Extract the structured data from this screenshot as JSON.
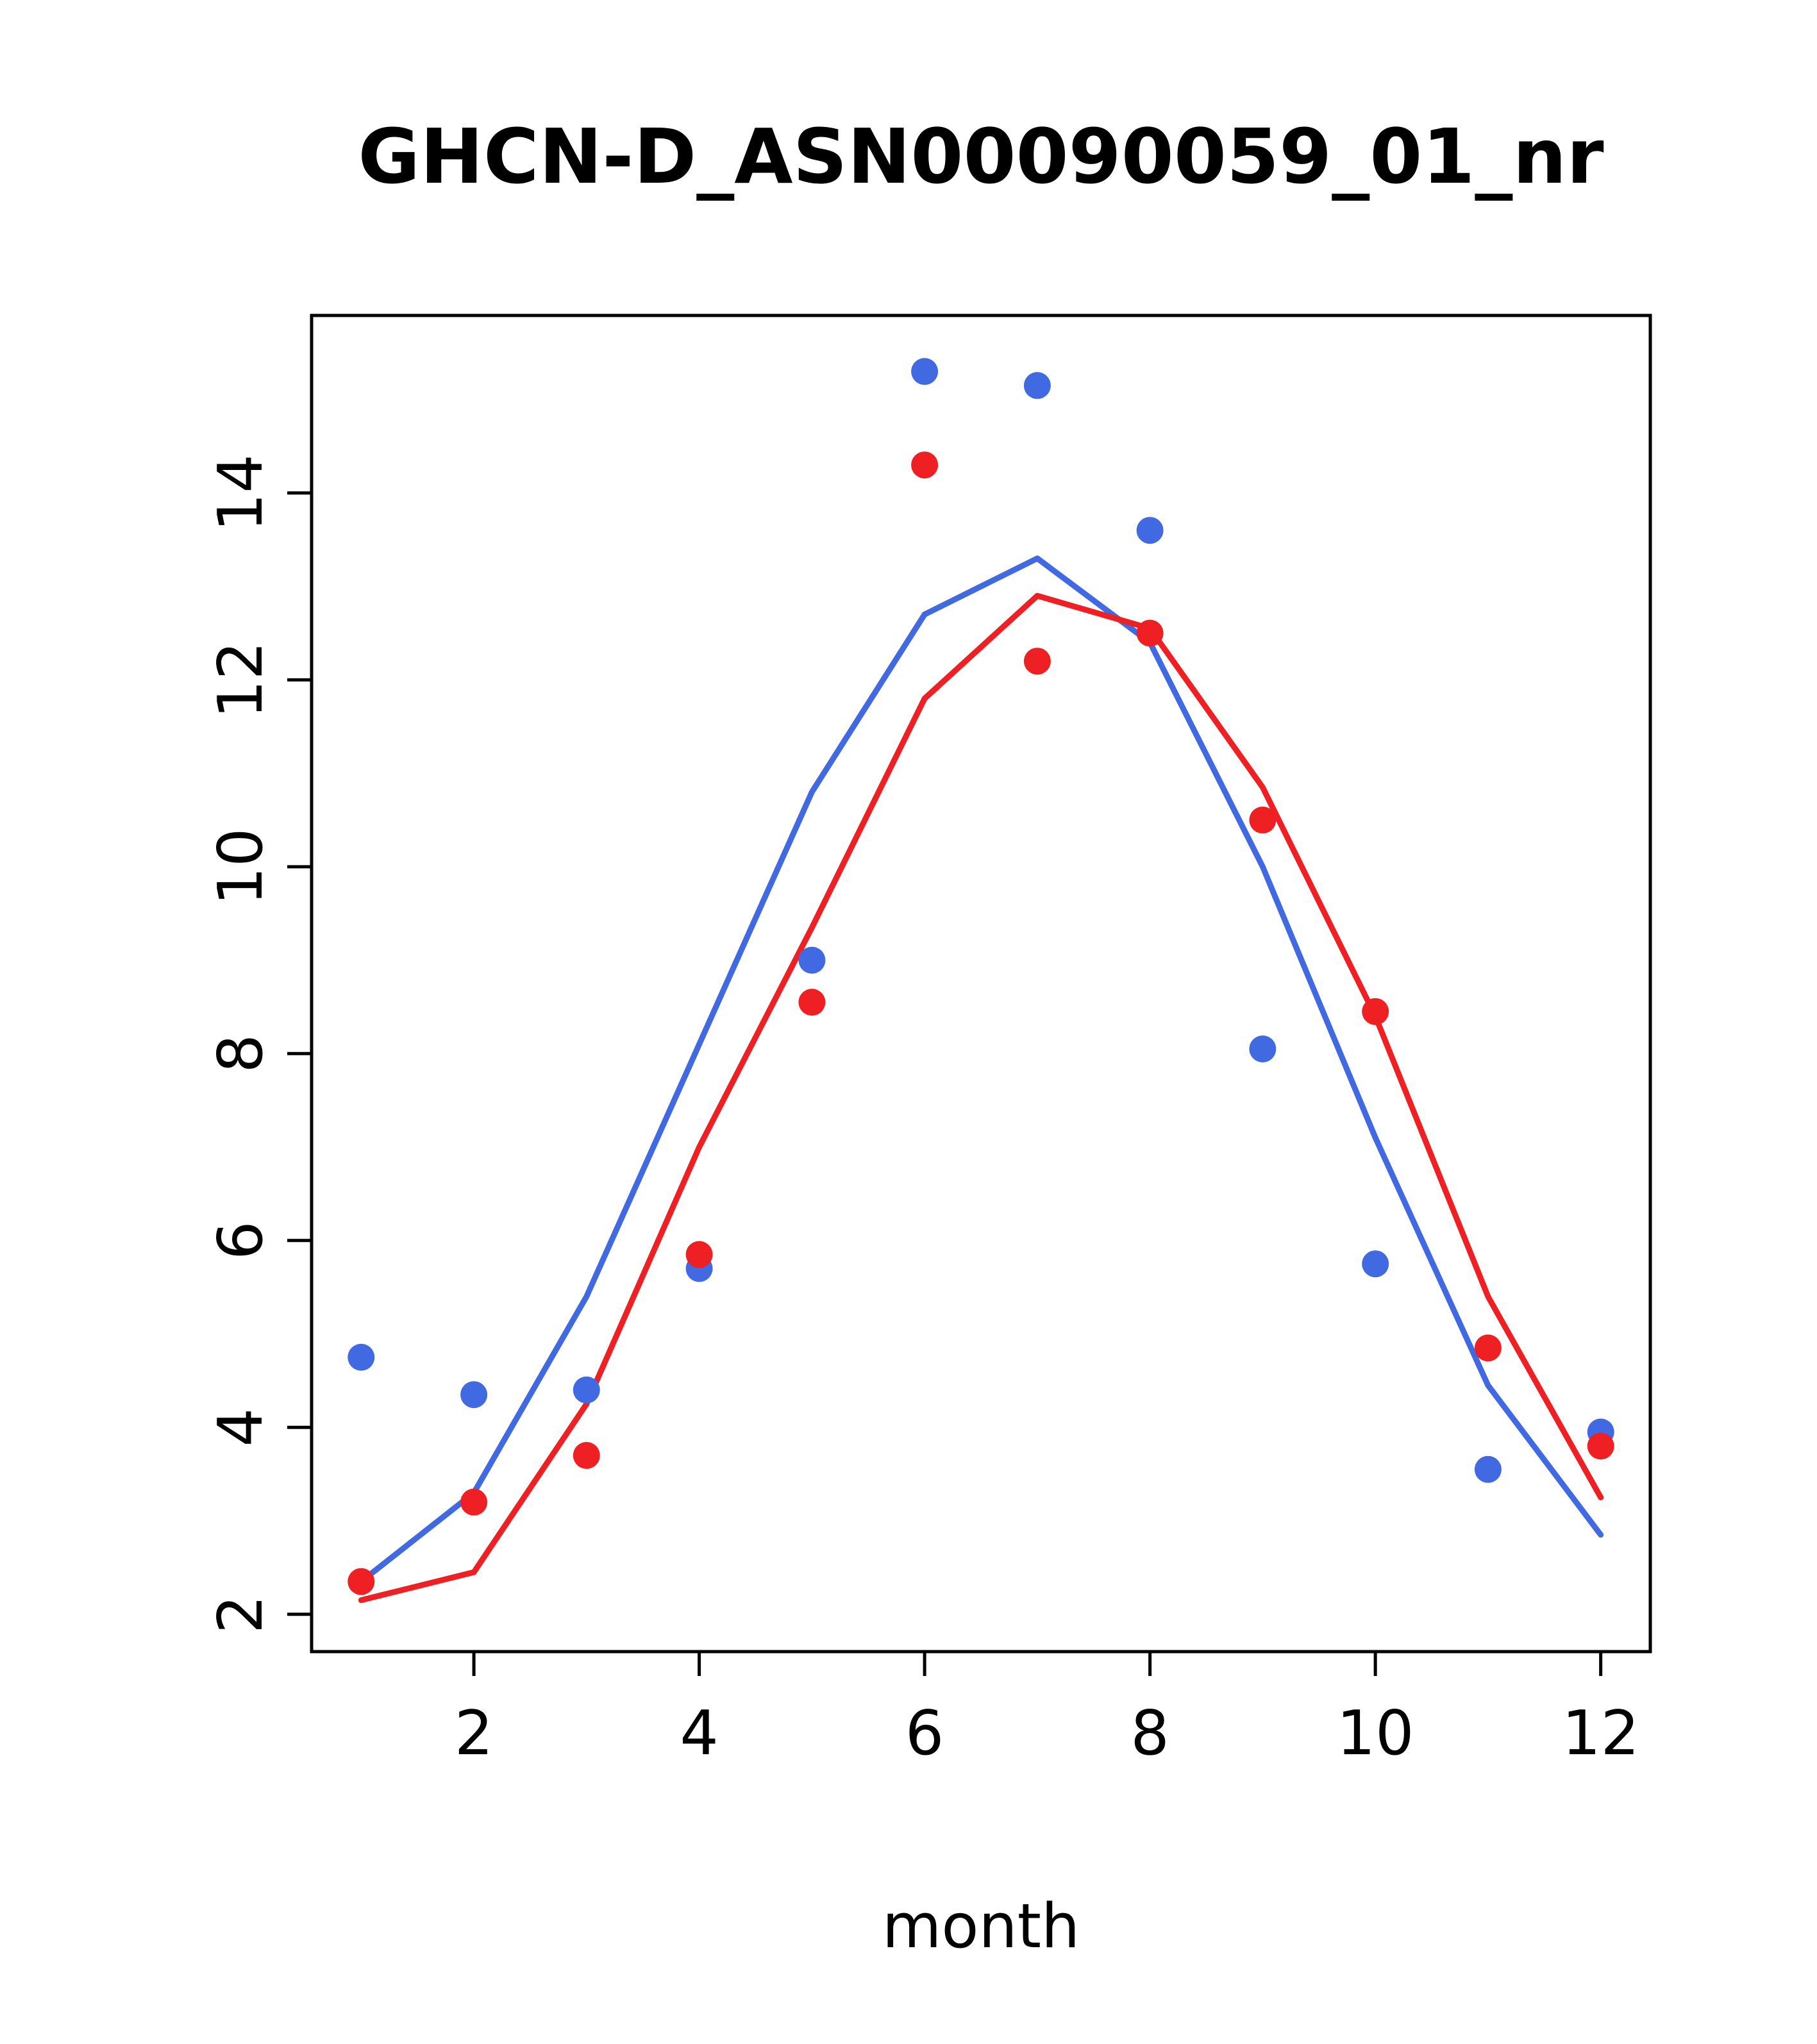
{
  "title": "GHCN-D_ASN00090059_01_nr",
  "chart_data": {
    "type": "scatter",
    "title": "GHCN-D_ASN00090059_01_nr",
    "xlabel": "month",
    "ylabel": "",
    "x": [
      1,
      2,
      3,
      4,
      5,
      6,
      7,
      8,
      9,
      10,
      11,
      12
    ],
    "xlim": [
      0.56,
      12.44
    ],
    "ylim": [
      1.6,
      15.9
    ],
    "xticks": [
      2,
      4,
      6,
      8,
      10,
      12
    ],
    "yticks": [
      2,
      4,
      6,
      8,
      10,
      12,
      14
    ],
    "grid": false,
    "legend": "none",
    "colors": {
      "blue": "#4169E1",
      "red": "#EE2024",
      "axis": "#000000",
      "background": "#ffffff"
    },
    "series": [
      {
        "name": "line-blue",
        "kind": "line",
        "color": "#4169E1",
        "values": [
          2.35,
          3.3,
          5.4,
          8.1,
          10.8,
          12.7,
          13.3,
          12.4,
          10.0,
          7.1,
          4.45,
          2.85
        ]
      },
      {
        "name": "line-red",
        "kind": "line",
        "color": "#EE2024",
        "values": [
          2.15,
          2.45,
          4.25,
          7.0,
          9.35,
          11.8,
          12.9,
          12.55,
          10.85,
          8.4,
          5.4,
          3.25
        ]
      },
      {
        "name": "points-blue",
        "kind": "points",
        "color": "#4169E1",
        "values": [
          4.75,
          4.35,
          4.4,
          5.7,
          9.0,
          15.3,
          15.15,
          13.6,
          8.05,
          5.75,
          3.55,
          3.95
        ]
      },
      {
        "name": "points-red",
        "kind": "points",
        "color": "#EE2024",
        "values": [
          2.35,
          3.2,
          3.7,
          5.85,
          8.55,
          14.3,
          12.2,
          12.5,
          10.5,
          8.45,
          4.85,
          3.8
        ]
      }
    ]
  }
}
